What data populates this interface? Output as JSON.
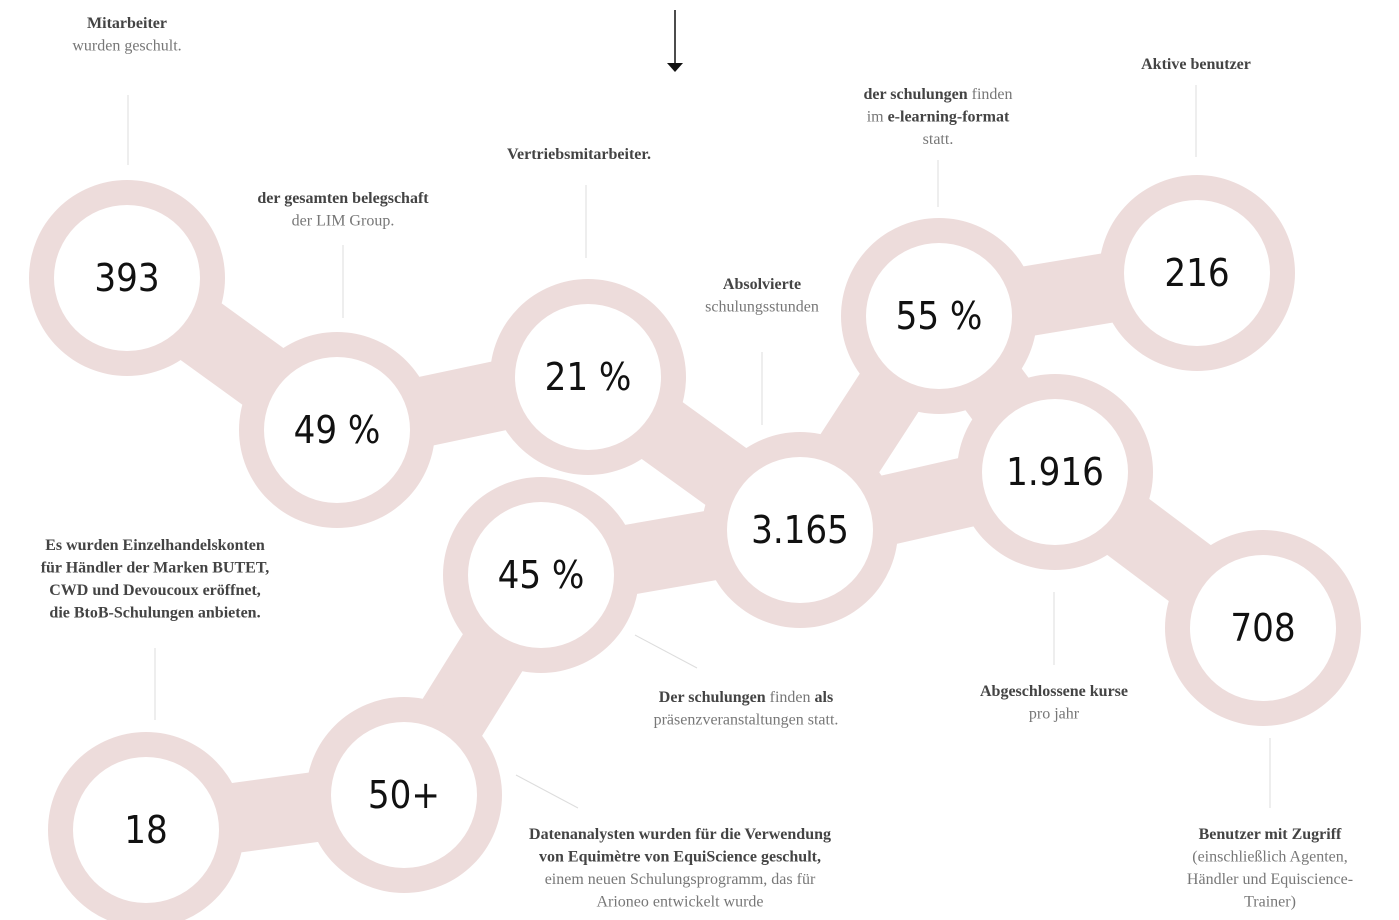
{
  "nodes": [
    {
      "value": "393",
      "label": [
        [
          {
            "text": "Mitarbeiter",
            "bold": true
          }
        ],
        [
          {
            "text": "wurden geschult.",
            "bold": false
          }
        ]
      ]
    },
    {
      "value": "49 %",
      "label": [
        [
          {
            "text": "der gesamten belegschaft",
            "bold": true
          }
        ],
        [
          {
            "text": "der LIM Group.",
            "bold": false
          }
        ]
      ]
    },
    {
      "value": "21 %",
      "label": [
        [
          {
            "text": "Vertriebsmitarbeiter.",
            "bold": true
          }
        ]
      ]
    },
    {
      "value": "45 %",
      "label": [
        [
          {
            "text": "Der schulungen",
            "bold": true
          },
          {
            "text": "finden",
            "bold": false
          },
          {
            "text": "als",
            "bold": true
          }
        ],
        [
          {
            "text": "präsenzveranstaltungen statt.",
            "bold": false
          }
        ]
      ]
    },
    {
      "value": "3.165",
      "label": [
        [
          {
            "text": "Absolvierte",
            "bold": true
          }
        ],
        [
          {
            "text": "schulungsstunden",
            "bold": false
          }
        ]
      ]
    },
    {
      "value": "55 %",
      "label": [
        [
          {
            "text": "der schulungen",
            "bold": true
          },
          {
            "text": "finden",
            "bold": false
          }
        ],
        [
          {
            "text": "im",
            "bold": false
          },
          {
            "text": "e-learning-format",
            "bold": true
          }
        ],
        [
          {
            "text": "statt.",
            "bold": false
          }
        ]
      ]
    },
    {
      "value": "216",
      "label": [
        [
          {
            "text": "Aktive benutzer",
            "bold": true
          }
        ]
      ]
    },
    {
      "value": "1.916",
      "label": [
        [
          {
            "text": "Abgeschlossene kurse",
            "bold": true
          }
        ],
        [
          {
            "text": "pro jahr",
            "bold": false
          }
        ]
      ]
    },
    {
      "value": "708",
      "label": [
        [
          {
            "text": "Benutzer mit Zugriff",
            "bold": true
          }
        ],
        [
          {
            "text": "(einschließlich Agenten,",
            "bold": false
          }
        ],
        [
          {
            "text": "Händler und Equiscience-",
            "bold": false
          }
        ],
        [
          {
            "text": "Trainer)",
            "bold": false
          }
        ]
      ]
    },
    {
      "value": "50+",
      "label": [
        [
          {
            "text": "Datenanalysten wurden für die Verwendung",
            "bold": true
          }
        ],
        [
          {
            "text": "von Equimètre von EquiScience geschult,",
            "bold": true
          }
        ],
        [
          {
            "text": "einem neuen Schulungsprogramm, das für",
            "bold": false
          }
        ],
        [
          {
            "text": "Arioneo entwickelt wurde",
            "bold": false
          }
        ]
      ]
    },
    {
      "value": "18",
      "label": [
        [
          {
            "text": "Es wurden Einzelhandelskonten",
            "bold": true
          }
        ],
        [
          {
            "text": "für Händler der Marken BUTET,",
            "bold": true
          }
        ],
        [
          {
            "text": "CWD und Devoucoux eröffnet,",
            "bold": true
          }
        ],
        [
          {
            "text": "die BtoB-Schulungen anbieten.",
            "bold": true
          }
        ]
      ]
    }
  ]
}
